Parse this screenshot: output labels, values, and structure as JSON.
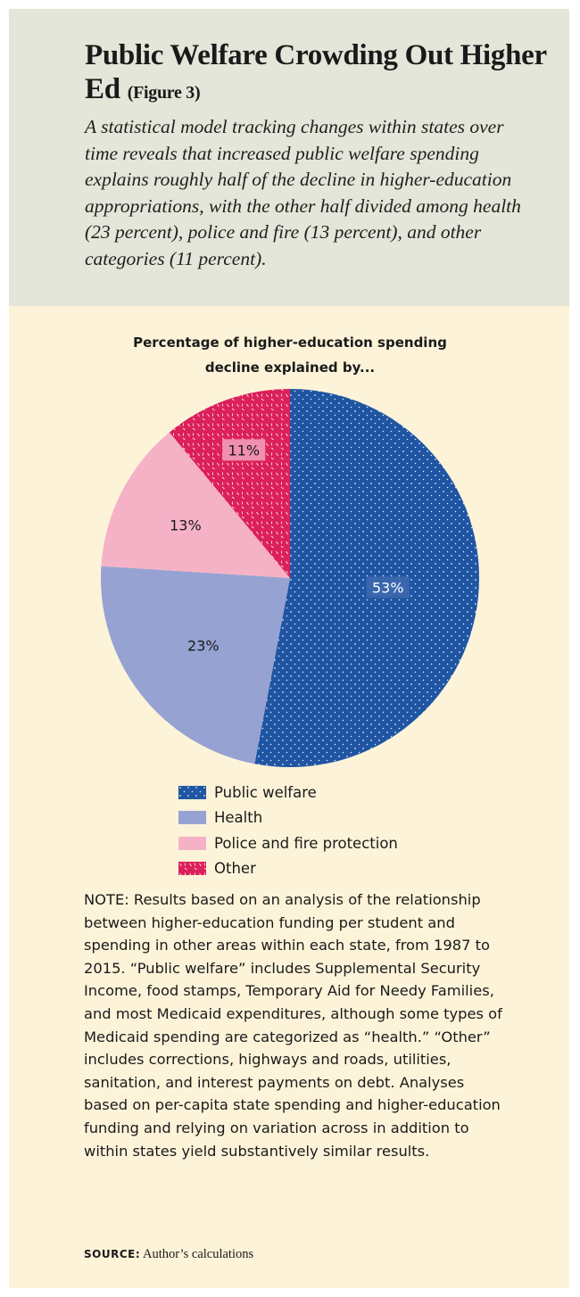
{
  "header": {
    "title": "Public Welfare Crowding Out Higher Ed",
    "figure_label": "(Figure 3)",
    "dek": "A statistical model tracking changes within states over time reveals that increased public welfare spending explains roughly half of the decline in higher-education appropriations, with the other half divided among health (23 percent), police and fire (13 percent), and other categories (11 percent)."
  },
  "chart_data": {
    "type": "pie",
    "title_line1": "Percentage of higher-education spending",
    "title_line2": "decline explained by...",
    "slices": [
      {
        "label": "Public welfare",
        "value": 53,
        "display": "53%",
        "color": "#1f55a3",
        "pattern": "dots"
      },
      {
        "label": "Health",
        "value": 23,
        "display": "23%",
        "color": "#96a3d2",
        "pattern": "none"
      },
      {
        "label": "Police and fire protection",
        "value": 13,
        "display": "13%",
        "color": "#f5b2c7",
        "pattern": "none"
      },
      {
        "label": "Other",
        "value": 11,
        "display": "11%",
        "color": "#dc2059",
        "pattern": "dashes"
      }
    ],
    "legend_placement": "bottom"
  },
  "note": "NOTE: Results based on an analysis of the relationship between higher-education funding per student and spending in other areas within each state, from 1987 to 2015. “Public welfare” includes Supplemental Security Income, food stamps, Temporary Aid for Needy Families, and most Medicaid expenditures, although some types of Medicaid spending are categorized as “health.” “Other” includes corrections, highways and roads, utilities, sanitation, and interest payments on debt. Analyses based on per-capita state spending and higher-education funding and relying on variation across in addition to within states yield substantively similar results.",
  "source": {
    "label": "SOURCE:",
    "text": "Author’s calculations"
  }
}
